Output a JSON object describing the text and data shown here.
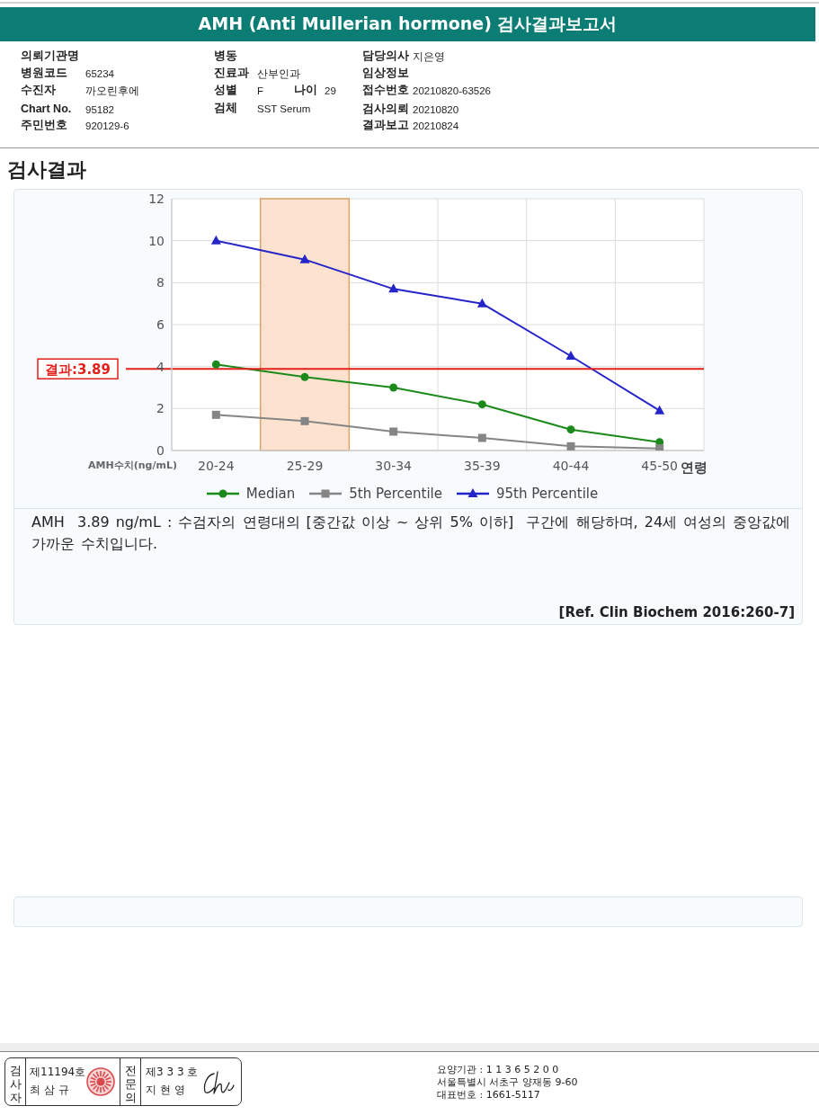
{
  "chart_data": {
    "type": "line",
    "title": "AMH (Anti Mullerian hormone) 검사결과보고서",
    "subtitle": "검사결과",
    "xlabel": "연령",
    "ylabel": "AMH수치(ng/mL)",
    "categories": [
      "20-24",
      "25-29",
      "30-34",
      "35-39",
      "40-44",
      "45-50"
    ],
    "series": [
      {
        "name": "Median",
        "color": "#1b8a1b",
        "marker": "circle",
        "values": [
          4.1,
          3.5,
          3.0,
          2.2,
          1.0,
          0.4
        ]
      },
      {
        "name": "5th Percentile",
        "color": "#858585",
        "marker": "square",
        "values": [
          1.7,
          1.4,
          0.9,
          0.6,
          0.2,
          0.1
        ]
      },
      {
        "name": "95th Percentile",
        "color": "#2424c8",
        "marker": "triangle",
        "values": [
          10.0,
          9.1,
          7.7,
          7.0,
          4.5,
          1.9
        ]
      }
    ],
    "ylim": [
      0,
      12
    ],
    "yticks": [
      0,
      2,
      4,
      6,
      8,
      10,
      12
    ],
    "grid": true,
    "legend": "bottom",
    "ref_lines": [
      {
        "axis": "y",
        "value": 3.89,
        "label": "결과:3.89",
        "color": "#e3201b"
      }
    ],
    "bands": [
      {
        "axis": "x",
        "from": "25-29",
        "to": "25-29",
        "color": "#fde3cf"
      }
    ],
    "annotations": [
      "의뢰기관명",
      "병동",
      "담당의사",
      "지은영",
      "병원코드",
      "65234",
      "진료과",
      "산부인과",
      "임상정보",
      "수진자",
      "까오린후에",
      "성별",
      "F",
      "나이",
      "29",
      "접수번호",
      "20210820-63526",
      "Chart No.",
      "95182",
      "검체",
      "SST Serum",
      "검사의뢰",
      "20210820",
      "주민번호",
      "920129-6",
      "결과보고",
      "20210824",
      "AMH  3.89 ng/mL : 수검자의 연령대의 [중간값 이상 ~ 상위 5% 이하]  구간에 해당하며, 24세 여성의 중앙값에 가까운 수치입니다.",
      "[Ref. Clin Biochem 2016:260-7]",
      "검사자",
      "제11194호",
      "최 삼 규",
      "전문의",
      "제3 3 3 호",
      "지 현 영",
      "요양기관 : 1 1 3 6 5 2 0 0",
      "서울특별시 서초구 양재동 9-60",
      "대표번호 : 1661-5117"
    ]
  }
}
